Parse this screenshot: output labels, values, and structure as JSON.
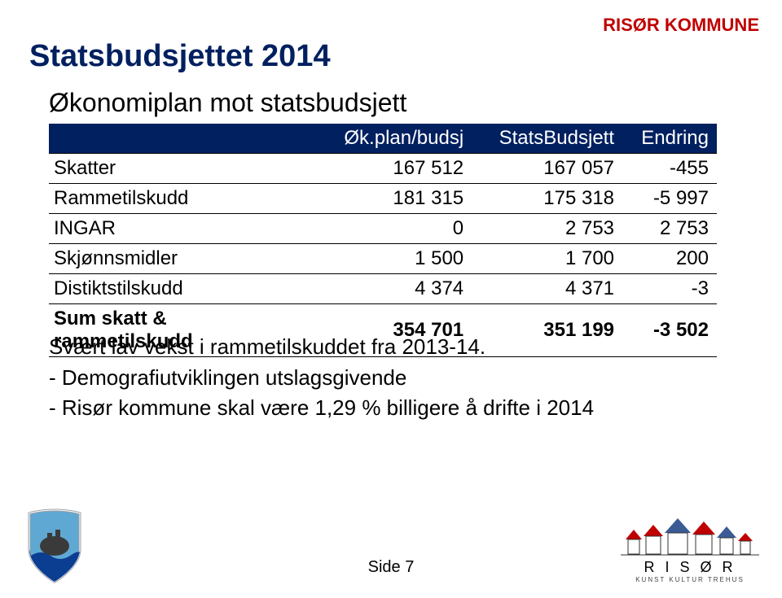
{
  "brand": {
    "name": "RISØR KOMMUNE",
    "color": "#c00000"
  },
  "title": {
    "text": "Statsbudsjettet 2014",
    "color": "#002060"
  },
  "subtitle": "Økonomiplan mot statsbudsjett",
  "table": {
    "header_bg": "#002060",
    "header_fg": "#ffffff",
    "columns": [
      "",
      "Øk.plan/budsj",
      "StatsBudsjett",
      "Endring"
    ],
    "rows": [
      {
        "label": "Skatter",
        "c1": "167 512",
        "c2": "167 057",
        "c3": "-455",
        "bold": false
      },
      {
        "label": "Rammetilskudd",
        "c1": "181 315",
        "c2": "175 318",
        "c3": "-5 997",
        "bold": false
      },
      {
        "label": "INGAR",
        "c1": "0",
        "c2": "2 753",
        "c3": "2 753",
        "bold": false
      },
      {
        "label": "Skjønnsmidler",
        "c1": "1 500",
        "c2": "1 700",
        "c3": "200",
        "bold": false
      },
      {
        "label": "Distiktstilskudd",
        "c1": "4 374",
        "c2": "4 371",
        "c3": "-3",
        "bold": false
      },
      {
        "label": "Sum skatt & rammetilskudd",
        "c1": "354 701",
        "c2": "351 199",
        "c3": "-3 502",
        "bold": true
      }
    ]
  },
  "body": {
    "line1": "Svært lav vekst i rammetilskuddet fra 2013-14.",
    "line2": "- Demografiutviklingen utslagsgivende",
    "line3": "- Risør kommune skal være 1,29 % billigere å drifte i 2014"
  },
  "footer": {
    "page_label": "Side 7"
  },
  "logo_right": {
    "wordmark": "R I S Ø R",
    "tagline": "KUNST KULTUR TREHUS",
    "accent1": "#c00000",
    "accent2": "#3b5b95"
  },
  "crest_colors": {
    "shield": "#5fa8d3",
    "wave": "#0b3d91",
    "rock": "#3a3a3a",
    "outline": "#9aa0a6"
  }
}
